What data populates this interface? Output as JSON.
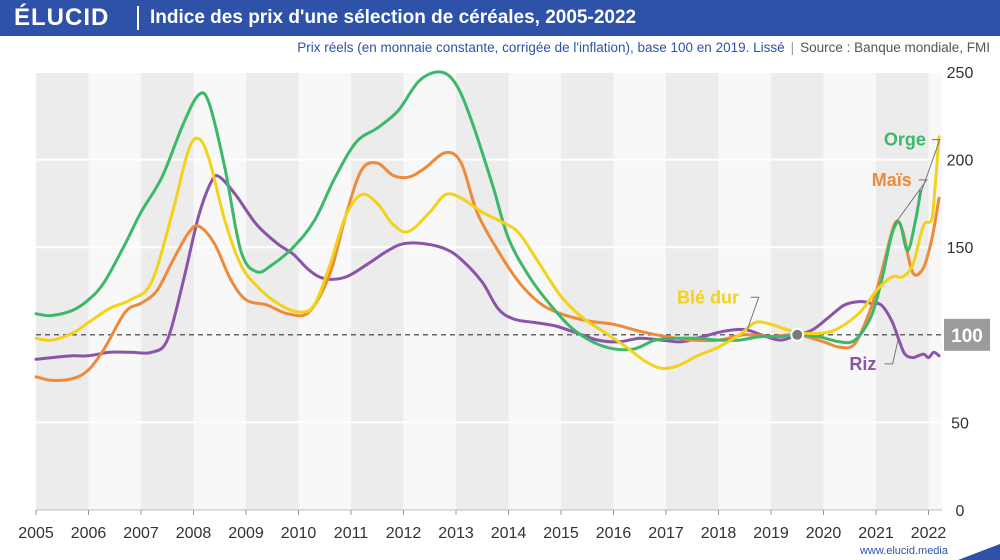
{
  "header": {
    "logo": "ÉLUCID",
    "title": "Indice des prix d'une sélection de céréales, 2005-2022"
  },
  "subtitle": {
    "text": "Prix réels (en monnaie constante, corrigée de l'inflation), base 100 en 2019. Lissé",
    "separator": "|",
    "source": "Source : Banque mondiale, FMI"
  },
  "footer": {
    "site": "www.elucid.media"
  },
  "colors": {
    "brand": "#2d52a8",
    "orge": "#3cb86a",
    "mais": "#ee8a3a",
    "ble_dur": "#f2d21a",
    "riz": "#8a55a8",
    "reference_label_bg": "#9b9b9b"
  },
  "chart_data": {
    "type": "line",
    "x_ticks": [
      "2005",
      "2006",
      "2007",
      "2008",
      "2009",
      "2010",
      "2011",
      "2012",
      "2013",
      "2014",
      "2015",
      "2016",
      "2017",
      "2018",
      "2019",
      "2020",
      "2021",
      "2022"
    ],
    "y_ticks": [
      "0",
      "50",
      "100",
      "150",
      "200",
      "250"
    ],
    "xlim": [
      2005,
      2022.2
    ],
    "ylim": [
      0,
      250
    ],
    "reference_line": {
      "value": 100,
      "label": "100"
    },
    "base_marker": {
      "x": 2019.5,
      "y": 100
    },
    "grid": "horizontal lines + alternating year bands",
    "series": [
      {
        "name": "Orge",
        "color": "#3cb86a",
        "points": [
          [
            2005.0,
            112
          ],
          [
            2005.3,
            111
          ],
          [
            2005.7,
            114
          ],
          [
            2006.0,
            120
          ],
          [
            2006.3,
            130
          ],
          [
            2006.7,
            152
          ],
          [
            2007.0,
            170
          ],
          [
            2007.4,
            190
          ],
          [
            2007.8,
            220
          ],
          [
            2008.1,
            237
          ],
          [
            2008.3,
            232
          ],
          [
            2008.6,
            195
          ],
          [
            2008.9,
            148
          ],
          [
            2009.2,
            136
          ],
          [
            2009.5,
            140
          ],
          [
            2009.9,
            150
          ],
          [
            2010.3,
            165
          ],
          [
            2010.7,
            190
          ],
          [
            2011.1,
            210
          ],
          [
            2011.5,
            218
          ],
          [
            2011.9,
            228
          ],
          [
            2012.3,
            245
          ],
          [
            2012.7,
            250
          ],
          [
            2013.0,
            243
          ],
          [
            2013.3,
            222
          ],
          [
            2013.7,
            185
          ],
          [
            2014.0,
            155
          ],
          [
            2014.4,
            133
          ],
          [
            2014.8,
            117
          ],
          [
            2015.2,
            104
          ],
          [
            2015.6,
            96
          ],
          [
            2016.0,
            92
          ],
          [
            2016.4,
            92
          ],
          [
            2016.8,
            97
          ],
          [
            2017.2,
            98
          ],
          [
            2017.6,
            98
          ],
          [
            2018.0,
            97
          ],
          [
            2018.4,
            97
          ],
          [
            2018.8,
            99
          ],
          [
            2019.2,
            99
          ],
          [
            2019.5,
            100
          ],
          [
            2019.9,
            99
          ],
          [
            2020.3,
            96
          ],
          [
            2020.6,
            97
          ],
          [
            2020.9,
            110
          ],
          [
            2021.1,
            130
          ],
          [
            2021.3,
            157
          ],
          [
            2021.45,
            164
          ],
          [
            2021.6,
            148
          ],
          [
            2021.75,
            165
          ],
          [
            2021.85,
            182
          ]
        ]
      },
      {
        "name": "Maïs",
        "color": "#ee8a3a",
        "points": [
          [
            2005.0,
            76
          ],
          [
            2005.3,
            74
          ],
          [
            2005.7,
            75
          ],
          [
            2006.0,
            80
          ],
          [
            2006.3,
            92
          ],
          [
            2006.7,
            113
          ],
          [
            2007.0,
            118
          ],
          [
            2007.3,
            125
          ],
          [
            2007.6,
            142
          ],
          [
            2007.9,
            158
          ],
          [
            2008.1,
            162
          ],
          [
            2008.4,
            152
          ],
          [
            2008.7,
            132
          ],
          [
            2009.0,
            120
          ],
          [
            2009.4,
            117
          ],
          [
            2009.8,
            112
          ],
          [
            2010.2,
            113
          ],
          [
            2010.6,
            135
          ],
          [
            2010.9,
            168
          ],
          [
            2011.2,
            194
          ],
          [
            2011.5,
            198
          ],
          [
            2011.8,
            191
          ],
          [
            2012.1,
            190
          ],
          [
            2012.4,
            195
          ],
          [
            2012.8,
            204
          ],
          [
            2013.1,
            198
          ],
          [
            2013.4,
            170
          ],
          [
            2013.8,
            148
          ],
          [
            2014.2,
            130
          ],
          [
            2014.6,
            118
          ],
          [
            2015.0,
            112
          ],
          [
            2015.5,
            108
          ],
          [
            2016.0,
            106
          ],
          [
            2016.5,
            102
          ],
          [
            2017.0,
            99
          ],
          [
            2017.5,
            97
          ],
          [
            2018.0,
            97
          ],
          [
            2018.5,
            100
          ],
          [
            2019.0,
            99
          ],
          [
            2019.5,
            100
          ],
          [
            2020.0,
            96
          ],
          [
            2020.3,
            93
          ],
          [
            2020.6,
            95
          ],
          [
            2020.9,
            115
          ],
          [
            2021.1,
            135
          ],
          [
            2021.35,
            163
          ],
          [
            2021.5,
            160
          ],
          [
            2021.65,
            140
          ],
          [
            2021.75,
            134
          ],
          [
            2021.9,
            138
          ],
          [
            2022.0,
            147
          ],
          [
            2022.1,
            160
          ],
          [
            2022.2,
            178
          ]
        ]
      },
      {
        "name": "Blé dur",
        "color": "#f2d21a",
        "points": [
          [
            2005.0,
            98
          ],
          [
            2005.3,
            97
          ],
          [
            2005.7,
            101
          ],
          [
            2006.0,
            107
          ],
          [
            2006.4,
            115
          ],
          [
            2006.8,
            120
          ],
          [
            2007.2,
            130
          ],
          [
            2007.6,
            170
          ],
          [
            2007.9,
            205
          ],
          [
            2008.1,
            212
          ],
          [
            2008.3,
            200
          ],
          [
            2008.6,
            165
          ],
          [
            2008.9,
            140
          ],
          [
            2009.2,
            128
          ],
          [
            2009.6,
            118
          ],
          [
            2010.0,
            113
          ],
          [
            2010.3,
            117
          ],
          [
            2010.6,
            140
          ],
          [
            2010.9,
            168
          ],
          [
            2011.2,
            180
          ],
          [
            2011.5,
            175
          ],
          [
            2011.8,
            163
          ],
          [
            2012.1,
            159
          ],
          [
            2012.5,
            170
          ],
          [
            2012.8,
            180
          ],
          [
            2013.1,
            178
          ],
          [
            2013.5,
            170
          ],
          [
            2013.9,
            164
          ],
          [
            2014.2,
            158
          ],
          [
            2014.6,
            140
          ],
          [
            2015.0,
            122
          ],
          [
            2015.4,
            110
          ],
          [
            2015.8,
            102
          ],
          [
            2016.2,
            94
          ],
          [
            2016.6,
            85
          ],
          [
            2016.9,
            81
          ],
          [
            2017.2,
            82
          ],
          [
            2017.6,
            88
          ],
          [
            2018.0,
            93
          ],
          [
            2018.4,
            100
          ],
          [
            2018.7,
            107
          ],
          [
            2019.0,
            106
          ],
          [
            2019.3,
            103
          ],
          [
            2019.6,
            101
          ],
          [
            2020.0,
            101
          ],
          [
            2020.3,
            104
          ],
          [
            2020.7,
            113
          ],
          [
            2021.0,
            125
          ],
          [
            2021.3,
            133
          ],
          [
            2021.5,
            133
          ],
          [
            2021.7,
            140
          ],
          [
            2021.9,
            162
          ],
          [
            2022.05,
            165
          ],
          [
            2022.1,
            175
          ],
          [
            2022.2,
            213
          ]
        ]
      },
      {
        "name": "Riz",
        "color": "#8a55a8",
        "points": [
          [
            2005.0,
            86
          ],
          [
            2005.3,
            87
          ],
          [
            2005.7,
            88
          ],
          [
            2006.0,
            88
          ],
          [
            2006.4,
            90
          ],
          [
            2006.8,
            90
          ],
          [
            2007.2,
            90
          ],
          [
            2007.5,
            97
          ],
          [
            2007.8,
            130
          ],
          [
            2008.1,
            168
          ],
          [
            2008.35,
            188
          ],
          [
            2008.5,
            190
          ],
          [
            2008.8,
            180
          ],
          [
            2009.2,
            163
          ],
          [
            2009.6,
            152
          ],
          [
            2009.9,
            146
          ],
          [
            2010.2,
            137
          ],
          [
            2010.5,
            132
          ],
          [
            2010.9,
            133
          ],
          [
            2011.3,
            140
          ],
          [
            2011.7,
            148
          ],
          [
            2012.0,
            152
          ],
          [
            2012.4,
            152
          ],
          [
            2012.8,
            149
          ],
          [
            2013.1,
            143
          ],
          [
            2013.5,
            130
          ],
          [
            2013.8,
            115
          ],
          [
            2014.1,
            109
          ],
          [
            2014.5,
            107
          ],
          [
            2014.9,
            105
          ],
          [
            2015.3,
            101
          ],
          [
            2015.7,
            97
          ],
          [
            2016.1,
            96
          ],
          [
            2016.5,
            98
          ],
          [
            2016.9,
            97
          ],
          [
            2017.3,
            96
          ],
          [
            2017.7,
            99
          ],
          [
            2018.1,
            102
          ],
          [
            2018.5,
            103
          ],
          [
            2018.9,
            99
          ],
          [
            2019.2,
            97
          ],
          [
            2019.5,
            100
          ],
          [
            2019.8,
            103
          ],
          [
            2020.1,
            110
          ],
          [
            2020.4,
            117
          ],
          [
            2020.7,
            119
          ],
          [
            2020.9,
            118
          ],
          [
            2021.1,
            117
          ],
          [
            2021.3,
            108
          ],
          [
            2021.45,
            96
          ],
          [
            2021.55,
            89
          ],
          [
            2021.7,
            87
          ],
          [
            2021.9,
            89
          ],
          [
            2022.0,
            87
          ],
          [
            2022.1,
            90
          ],
          [
            2022.2,
            88
          ]
        ]
      }
    ],
    "series_labels": [
      {
        "series": "Orge",
        "text": "Orge",
        "anchor": [
          2021.55,
          208
        ],
        "target": [
          2021.82,
          178
        ]
      },
      {
        "series": "Maïs",
        "text": "Maïs",
        "anchor": [
          2021.3,
          185
        ],
        "target": [
          2021.35,
          163
        ]
      },
      {
        "series": "Blé dur",
        "text": "Blé dur",
        "anchor": [
          2017.8,
          118
        ],
        "target": [
          2018.55,
          103
        ]
      },
      {
        "series": "Riz",
        "text": "Riz",
        "anchor": [
          2020.75,
          80
        ],
        "target": [
          2021.42,
          97
        ]
      }
    ]
  }
}
